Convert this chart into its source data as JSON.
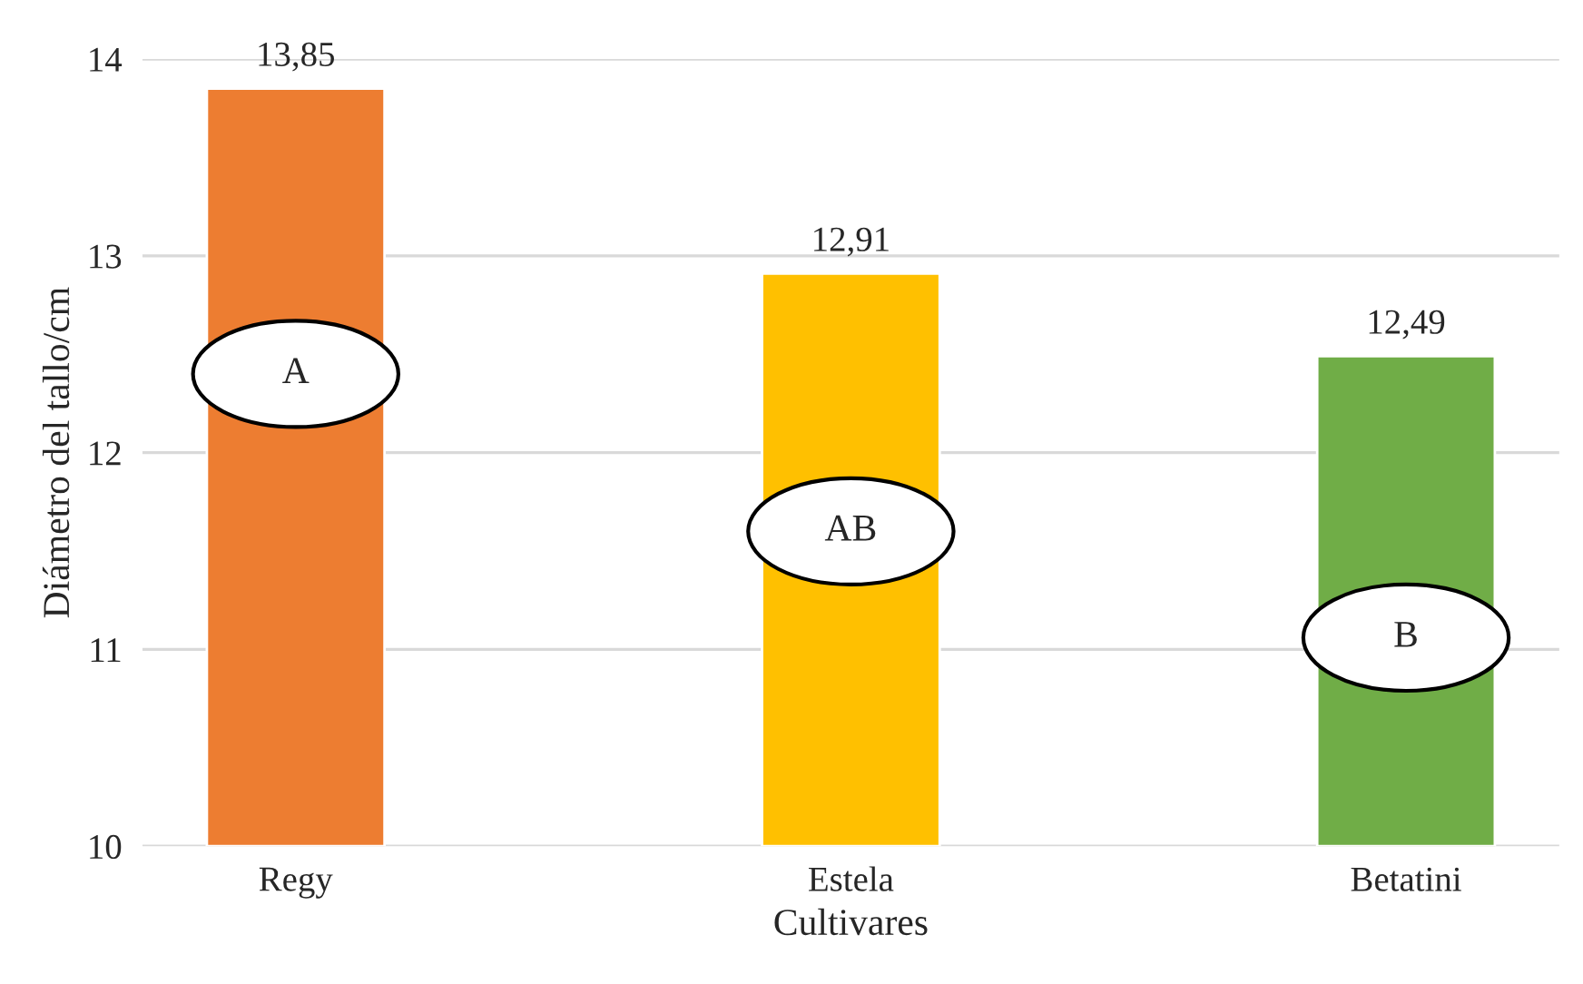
{
  "chart_data": {
    "type": "bar",
    "xlabel": "Cultivares",
    "ylabel": "Diámetro del tallo/cm",
    "categories": [
      "Regy",
      "Estela",
      "Betatini"
    ],
    "values": [
      13.85,
      12.91,
      12.49
    ],
    "colors": [
      "#ed7d31",
      "#ffc000",
      "#70ad47"
    ],
    "value_labels": [
      "13,85",
      "12,91",
      "12,49"
    ],
    "ylim": [
      10,
      14
    ],
    "yticks": [
      10,
      11,
      12,
      13,
      14
    ],
    "grid": "y",
    "legend": false,
    "annotations": [
      "A",
      "AB",
      "B"
    ]
  }
}
